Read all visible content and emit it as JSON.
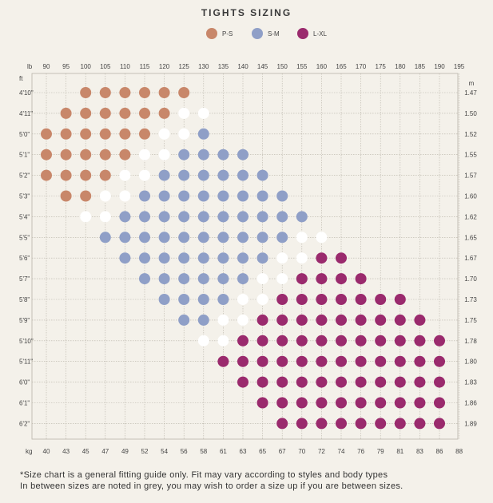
{
  "title": "TIGHTS SIZING",
  "legend": [
    {
      "label": "P-S",
      "color": "#c8876a"
    },
    {
      "label": "S-M",
      "color": "#8f9fc7"
    },
    {
      "label": "L-XL",
      "color": "#9a2a6d"
    }
  ],
  "between_color": "#ffffff",
  "footnote": {
    "line1": "*Size chart is a general fitting guide only. Fit may vary according to styles and body types",
    "line2": "In between sizes are noted in grey, you may wish to order a size up if you are between sizes."
  },
  "chart_data": {
    "type": "scatter",
    "title": "TIGHTS SIZING",
    "x_top_label": "lb",
    "x_top_ticks": [
      "90",
      "95",
      "100",
      "105",
      "110",
      "115",
      "120",
      "125",
      "130",
      "135",
      "140",
      "145",
      "150",
      "155",
      "160",
      "165",
      "170",
      "175",
      "180",
      "185",
      "190",
      "195"
    ],
    "x_bottom_label": "kg",
    "x_bottom_ticks": [
      "40",
      "43",
      "45",
      "47",
      "49",
      "52",
      "54",
      "56",
      "58",
      "61",
      "63",
      "65",
      "67",
      "70",
      "72",
      "74",
      "76",
      "79",
      "81",
      "83",
      "86",
      "88"
    ],
    "y_left_label": "ft",
    "y_left_ticks": [
      "4'10\"",
      "4'11\"",
      "5'0\"",
      "5'1\"",
      "5'2\"",
      "5'3\"",
      "5'4\"",
      "5'5\"",
      "5'6\"",
      "5'7\"",
      "5'8\"",
      "5'9\"",
      "5'10\"",
      "5'11\"",
      "6'0\"",
      "6'1\"",
      "6'2\""
    ],
    "y_right_label": "m",
    "y_right_ticks": [
      "1.47",
      "1.50",
      "1.52",
      "1.55",
      "1.57",
      "1.60",
      "1.62",
      "1.65",
      "1.67",
      "1.70",
      "1.73",
      "1.75",
      "1.78",
      "1.80",
      "1.83",
      "1.86",
      "1.89"
    ],
    "grid": true,
    "legend_position": "top-center",
    "series": [
      {
        "name": "P-S",
        "color": "#c8876a",
        "rows": [
          {
            "height": "4'10\"",
            "weights_lb": [
              100,
              105,
              110,
              115,
              120,
              125
            ]
          },
          {
            "height": "4'11\"",
            "weights_lb": [
              95,
              100,
              105,
              110,
              115,
              120
            ]
          },
          {
            "height": "5'0\"",
            "weights_lb": [
              90,
              95,
              100,
              105,
              110,
              115
            ]
          },
          {
            "height": "5'1\"",
            "weights_lb": [
              90,
              95,
              100,
              105,
              110
            ]
          },
          {
            "height": "5'2\"",
            "weights_lb": [
              90,
              95,
              100,
              105
            ]
          },
          {
            "height": "5'3\"",
            "weights_lb": [
              95,
              100
            ]
          }
        ]
      },
      {
        "name": "between",
        "color": "#ffffff",
        "rows": [
          {
            "height": "4'11\"",
            "weights_lb": [
              125,
              130
            ]
          },
          {
            "height": "5'0\"",
            "weights_lb": [
              120,
              125
            ]
          },
          {
            "height": "5'1\"",
            "weights_lb": [
              115,
              120
            ]
          },
          {
            "height": "5'2\"",
            "weights_lb": [
              110,
              115
            ]
          },
          {
            "height": "5'3\"",
            "weights_lb": [
              105,
              110
            ]
          },
          {
            "height": "5'4\"",
            "weights_lb": [
              100,
              105
            ]
          },
          {
            "height": "5'5\"",
            "weights_lb": [
              155,
              160
            ]
          },
          {
            "height": "5'6\"",
            "weights_lb": [
              150,
              155
            ]
          },
          {
            "height": "5'7\"",
            "weights_lb": [
              145,
              150
            ]
          },
          {
            "height": "5'8\"",
            "weights_lb": [
              140,
              145
            ]
          },
          {
            "height": "5'9\"",
            "weights_lb": [
              135,
              140
            ]
          },
          {
            "height": "5'10\"",
            "weights_lb": [
              130,
              135
            ]
          }
        ]
      },
      {
        "name": "S-M",
        "color": "#8f9fc7",
        "rows": [
          {
            "height": "5'0\"",
            "weights_lb": [
              130
            ]
          },
          {
            "height": "5'1\"",
            "weights_lb": [
              125,
              130,
              135,
              140
            ]
          },
          {
            "height": "5'2\"",
            "weights_lb": [
              120,
              125,
              130,
              135,
              140,
              145
            ]
          },
          {
            "height": "5'3\"",
            "weights_lb": [
              115,
              120,
              125,
              130,
              135,
              140,
              145,
              150
            ]
          },
          {
            "height": "5'4\"",
            "weights_lb": [
              110,
              115,
              120,
              125,
              130,
              135,
              140,
              145,
              150,
              155
            ]
          },
          {
            "height": "5'5\"",
            "weights_lb": [
              105,
              110,
              115,
              120,
              125,
              130,
              135,
              140,
              145,
              150
            ]
          },
          {
            "height": "5'6\"",
            "weights_lb": [
              110,
              115,
              120,
              125,
              130,
              135,
              140,
              145
            ]
          },
          {
            "height": "5'7\"",
            "weights_lb": [
              115,
              120,
              125,
              130,
              135,
              140
            ]
          },
          {
            "height": "5'8\"",
            "weights_lb": [
              120,
              125,
              130,
              135
            ]
          },
          {
            "height": "5'9\"",
            "weights_lb": [
              125,
              130
            ]
          }
        ]
      },
      {
        "name": "L-XL",
        "color": "#9a2a6d",
        "rows": [
          {
            "height": "5'6\"",
            "weights_lb": [
              160,
              165
            ]
          },
          {
            "height": "5'7\"",
            "weights_lb": [
              155,
              160,
              165,
              170
            ]
          },
          {
            "height": "5'8\"",
            "weights_lb": [
              150,
              155,
              160,
              165,
              170,
              175,
              180
            ]
          },
          {
            "height": "5'9\"",
            "weights_lb": [
              145,
              150,
              155,
              160,
              165,
              170,
              175,
              180,
              185
            ]
          },
          {
            "height": "5'10\"",
            "weights_lb": [
              140,
              145,
              150,
              155,
              160,
              165,
              170,
              175,
              180,
              185,
              190
            ]
          },
          {
            "height": "5'11\"",
            "weights_lb": [
              135,
              140,
              145,
              150,
              155,
              160,
              165,
              170,
              175,
              180,
              185,
              190
            ]
          },
          {
            "height": "6'0\"",
            "weights_lb": [
              140,
              145,
              150,
              155,
              160,
              165,
              170,
              175,
              180,
              185,
              190
            ]
          },
          {
            "height": "6'1\"",
            "weights_lb": [
              145,
              150,
              155,
              160,
              165,
              170,
              175,
              180,
              185,
              190
            ]
          },
          {
            "height": "6'2\"",
            "weights_lb": [
              150,
              155,
              160,
              165,
              170,
              175,
              180,
              185,
              190
            ]
          }
        ]
      }
    ]
  }
}
